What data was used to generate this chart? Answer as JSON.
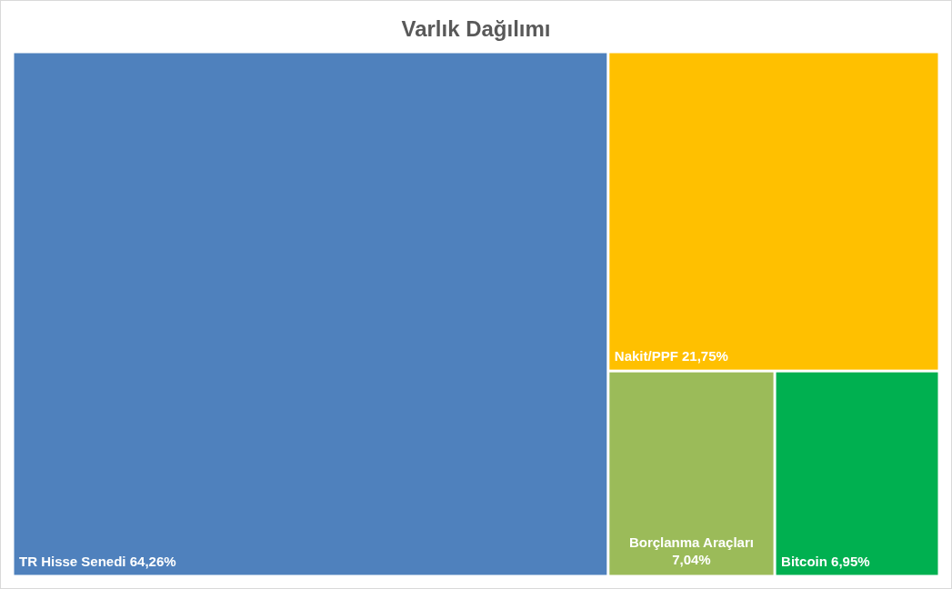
{
  "chart_data": {
    "type": "other",
    "title": "Varlık Dağılımı",
    "categories": [
      "TR Hisse Senedi",
      "Nakit/PPF",
      "Borçlanma Araçları",
      "Bitcoin"
    ],
    "values": [
      64.26,
      21.75,
      7.04,
      6.95
    ],
    "value_labels": [
      "64,26%",
      "21,75%",
      "7,04%",
      "6,95%"
    ],
    "colors": [
      "#4f81bd",
      "#ffc000",
      "#9bbb59",
      "#00b050"
    ]
  }
}
